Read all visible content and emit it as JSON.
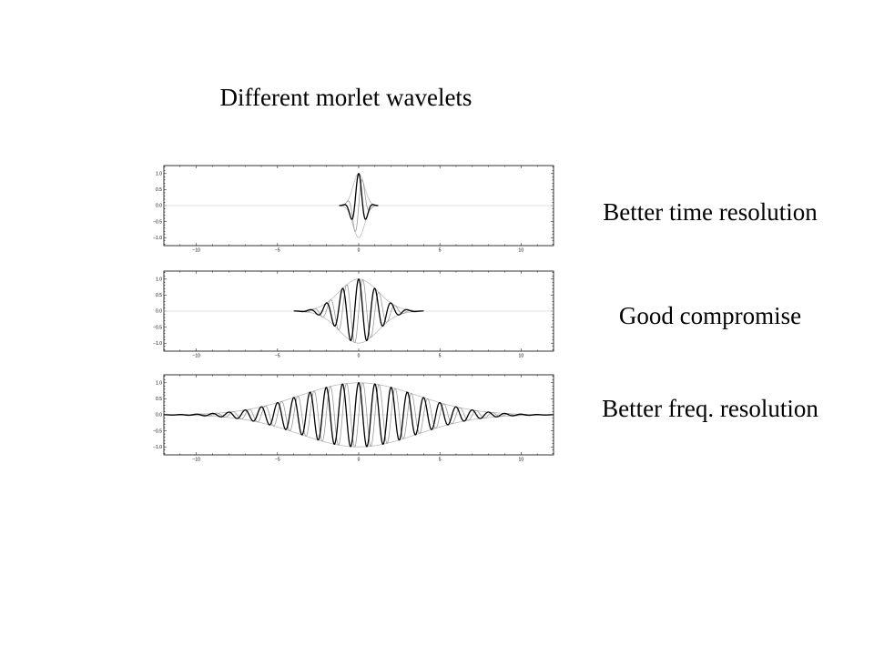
{
  "title": "Different morlet wavelets",
  "captions": [
    "Better time resolution",
    "Good compromise",
    "Better freq. resolution"
  ],
  "chart_data": [
    {
      "type": "line",
      "xlim": [
        -12,
        12
      ],
      "ylim": [
        -1.25,
        1.25
      ],
      "xticks": [
        -10,
        -5,
        0,
        5,
        10
      ],
      "xtick_labels": [
        "−10",
        "−5",
        "0",
        "5",
        "10"
      ],
      "yticks": [
        1.0,
        0.5,
        0.0,
        -0.5,
        -1.0
      ],
      "ytick_labels": [
        "1.0",
        "0.5",
        "0.0",
        "−0.5",
        "−1.0"
      ],
      "morlet_sigma": 0.35,
      "morlet_frequency": 1.0,
      "support": [
        -1.2,
        1.2
      ],
      "series": [
        {
          "part": "real",
          "color": "#000000"
        },
        {
          "part": "imaginary",
          "color": "#999999"
        },
        {
          "part": "envelope",
          "color": "#bbbbbb"
        }
      ]
    },
    {
      "type": "line",
      "xlim": [
        -12,
        12
      ],
      "ylim": [
        -1.25,
        1.25
      ],
      "xticks": [
        -10,
        -5,
        0,
        5,
        10
      ],
      "xtick_labels": [
        "−10",
        "−5",
        "0",
        "5",
        "10"
      ],
      "yticks": [
        1.0,
        0.5,
        0.0,
        -0.5,
        -1.0
      ],
      "ytick_labels": [
        "1.0",
        "0.5",
        "0.0",
        "−0.5",
        "−1.0"
      ],
      "morlet_sigma": 1.2,
      "morlet_frequency": 1.0,
      "support": [
        -4,
        4
      ],
      "series": [
        {
          "part": "real",
          "color": "#000000"
        },
        {
          "part": "imaginary",
          "color": "#999999"
        },
        {
          "part": "envelope",
          "color": "#bbbbbb"
        }
      ]
    },
    {
      "type": "line",
      "xlim": [
        -12,
        12
      ],
      "ylim": [
        -1.25,
        1.25
      ],
      "xticks": [
        -10,
        -5,
        0,
        5,
        10
      ],
      "xtick_labels": [
        "−10",
        "−5",
        "0",
        "5",
        "10"
      ],
      "yticks": [
        1.0,
        0.5,
        0.0,
        -0.5,
        -1.0
      ],
      "ytick_labels": [
        "1.0",
        "0.5",
        "0.0",
        "−0.5",
        "−1.0"
      ],
      "morlet_sigma": 3.6,
      "morlet_frequency": 1.0,
      "support": [
        -12,
        12
      ],
      "series": [
        {
          "part": "real",
          "color": "#000000"
        },
        {
          "part": "imaginary",
          "color": "#999999"
        },
        {
          "part": "envelope",
          "color": "#bbbbbb"
        }
      ]
    }
  ]
}
